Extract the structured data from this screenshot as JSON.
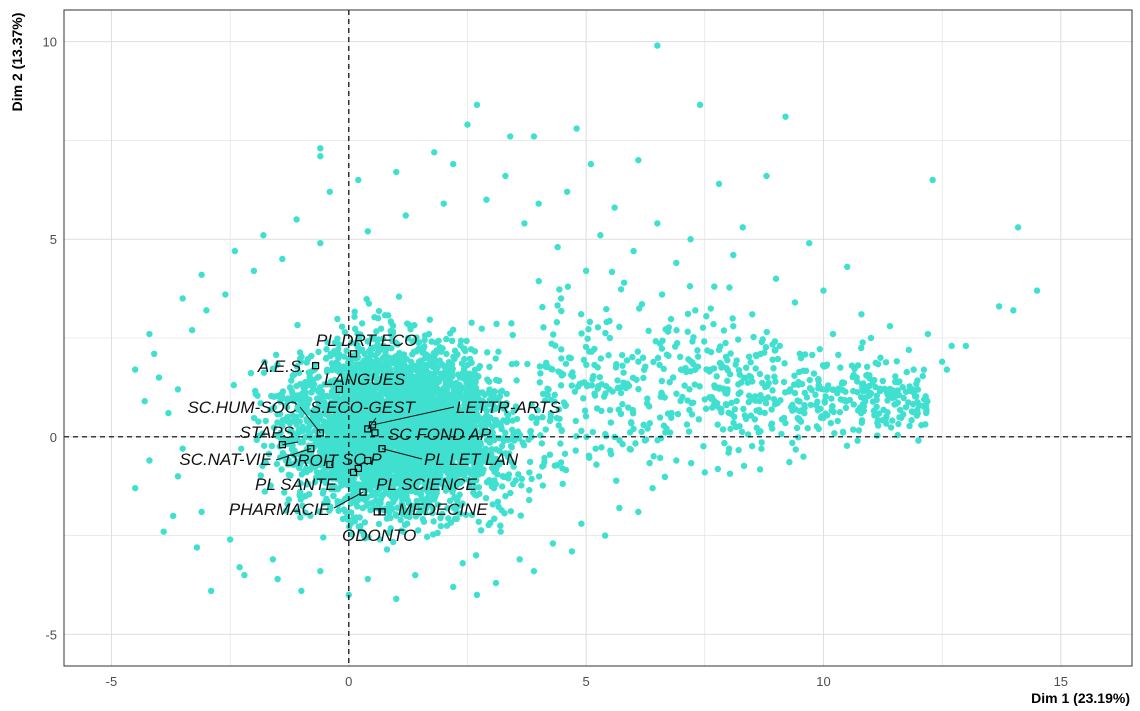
{
  "chart_data": {
    "type": "scatter",
    "title": "",
    "xlabel": "Dim 1 (23.19%)",
    "ylabel": "Dim 2 (13.37%)",
    "xlim": [
      -6,
      16.5
    ],
    "ylim": [
      -5.8,
      10.8
    ],
    "x_ticks": [
      -5,
      0,
      5,
      10,
      15
    ],
    "y_ticks": [
      -5,
      0,
      5,
      10
    ],
    "grid": true,
    "legend": "none",
    "reference_lines": {
      "x": 0,
      "y": 0,
      "style": "dashed"
    },
    "colors": {
      "points": "#40E0D0",
      "grid": "#dedede",
      "frame": "#333333",
      "reference": "#000000"
    },
    "individuals": {
      "color": "#40E0D0",
      "points": [
        [
          6.5,
          9.9
        ],
        [
          7.4,
          8.4
        ],
        [
          9.2,
          8.1
        ],
        [
          2.7,
          8.4
        ],
        [
          2.5,
          7.9
        ],
        [
          3.4,
          7.6
        ],
        [
          3.9,
          7.6
        ],
        [
          4.8,
          7.8
        ],
        [
          -0.6,
          7.3
        ],
        [
          -0.6,
          7.1
        ],
        [
          7.8,
          6.4
        ],
        [
          8.8,
          6.6
        ],
        [
          6.1,
          7.0
        ],
        [
          5.1,
          6.9
        ],
        [
          12.3,
          6.5
        ],
        [
          14.1,
          5.3
        ],
        [
          14.5,
          3.7
        ],
        [
          14.0,
          3.2
        ],
        [
          13.7,
          3.3
        ],
        [
          12.7,
          2.3
        ],
        [
          12.5,
          1.9
        ],
        [
          11.6,
          1.4
        ],
        [
          11.3,
          1.2
        ],
        [
          10.9,
          1.0
        ],
        [
          9.9,
          0.2
        ],
        [
          10.3,
          0.4
        ],
        [
          -4.5,
          1.7
        ],
        [
          -4.1,
          2.1
        ],
        [
          -4.0,
          1.5
        ],
        [
          -3.9,
          -2.4
        ],
        [
          -4.5,
          -1.3
        ],
        [
          -2.9,
          -3.9
        ],
        [
          -2.3,
          -3.3
        ],
        [
          -1.5,
          -3.6
        ],
        [
          2.7,
          -4.0
        ],
        [
          2.2,
          -3.8
        ],
        [
          -3.5,
          -0.3
        ],
        [
          -3.3,
          2.7
        ],
        [
          -3.0,
          3.2
        ],
        [
          -2.6,
          3.6
        ],
        [
          -2.0,
          4.2
        ],
        [
          -1.4,
          4.5
        ],
        [
          -0.6,
          4.9
        ],
        [
          0.4,
          5.2
        ],
        [
          1.2,
          5.6
        ],
        [
          2.0,
          5.9
        ],
        [
          2.9,
          6.0
        ],
        [
          3.7,
          5.4
        ],
        [
          4.4,
          4.8
        ],
        [
          5.0,
          4.2
        ],
        [
          5.8,
          3.9
        ],
        [
          6.6,
          3.6
        ],
        [
          7.3,
          3.2
        ],
        [
          8.1,
          2.8
        ],
        [
          8.7,
          2.4
        ],
        [
          9.5,
          2.1
        ],
        [
          10.2,
          2.6
        ],
        [
          10.8,
          3.1
        ],
        [
          11.4,
          2.8
        ],
        [
          9.0,
          4.0
        ],
        [
          8.1,
          4.6
        ],
        [
          7.2,
          5.0
        ],
        [
          6.5,
          5.4
        ],
        [
          5.6,
          5.8
        ],
        [
          4.6,
          6.2
        ],
        [
          9.7,
          4.9
        ],
        [
          10.5,
          4.3
        ],
        [
          11.8,
          2.2
        ],
        [
          9.3,
          1.2
        ],
        [
          8.5,
          1.4
        ],
        [
          7.6,
          1.0
        ],
        [
          6.8,
          0.6
        ],
        [
          6.0,
          0.2
        ],
        [
          5.2,
          -0.3
        ],
        [
          4.5,
          -0.8
        ],
        [
          3.8,
          -1.6
        ],
        [
          3.2,
          -2.4
        ],
        [
          2.4,
          -3.2
        ],
        [
          1.4,
          -3.5
        ],
        [
          0.4,
          -3.6
        ],
        [
          -0.6,
          -3.4
        ],
        [
          -1.6,
          -3.1
        ],
        [
          -2.5,
          -2.6
        ],
        [
          -3.1,
          -1.9
        ],
        [
          -3.6,
          -1.0
        ],
        [
          -3.8,
          0.6
        ],
        [
          -3.6,
          1.2
        ],
        [
          5.5,
          2.5
        ],
        [
          6.2,
          2.0
        ],
        [
          7.0,
          1.7
        ],
        [
          7.8,
          2.2
        ],
        [
          8.5,
          3.1
        ],
        [
          9.8,
          1.6
        ],
        [
          10.6,
          1.8
        ],
        [
          11.2,
          2.0
        ],
        [
          12.2,
          2.6
        ],
        [
          13.0,
          2.3
        ],
        [
          6.9,
          -0.6
        ],
        [
          7.5,
          -0.9
        ],
        [
          6.4,
          -1.3
        ],
        [
          5.7,
          -1.8
        ],
        [
          4.9,
          -2.2
        ],
        [
          4.3,
          -2.7
        ],
        [
          3.6,
          -3.1
        ],
        [
          1.8,
          7.2
        ],
        [
          1.0,
          6.7
        ],
        [
          0.2,
          6.5
        ],
        [
          -0.4,
          6.2
        ],
        [
          -1.1,
          5.5
        ],
        [
          -1.8,
          5.1
        ],
        [
          -2.4,
          4.7
        ],
        [
          -3.1,
          4.1
        ],
        [
          -3.5,
          3.5
        ],
        [
          -4.2,
          2.6
        ],
        [
          -4.3,
          0.9
        ],
        [
          -4.2,
          -0.6
        ],
        [
          -3.7,
          -2.0
        ],
        [
          -3.2,
          -2.8
        ],
        [
          -2.2,
          -3.5
        ],
        [
          -1.0,
          -3.9
        ],
        [
          0.0,
          -4.0
        ],
        [
          1.0,
          -4.1
        ],
        [
          3.1,
          -3.7
        ],
        [
          3.9,
          -3.4
        ],
        [
          4.7,
          -2.9
        ],
        [
          5.4,
          -2.5
        ],
        [
          6.1,
          -1.9
        ],
        [
          8.0,
          -0.4
        ],
        [
          8.9,
          0.3
        ],
        [
          9.6,
          0.8
        ],
        [
          10.1,
          1.3
        ],
        [
          10.7,
          1.5
        ],
        [
          11.9,
          1.7
        ],
        [
          12.6,
          1.7
        ],
        [
          11.0,
          2.5
        ],
        [
          7.7,
          3.8
        ],
        [
          6.9,
          4.4
        ],
        [
          6.0,
          4.7
        ],
        [
          5.3,
          5.1
        ],
        [
          4.0,
          5.9
        ],
        [
          3.3,
          6.6
        ],
        [
          2.2,
          6.9
        ],
        [
          8.3,
          5.3
        ],
        [
          9.4,
          3.4
        ],
        [
          10.0,
          3.7
        ]
      ]
    },
    "categories": [
      {
        "label": "PL DRT ECO",
        "x": 0.1,
        "y": 2.1
      },
      {
        "label": "A.E.S.",
        "x": -0.7,
        "y": 1.8
      },
      {
        "label": "LANGUES",
        "x": -0.2,
        "y": 1.2
      },
      {
        "label": "SC.HUM-SOC",
        "x": -0.6,
        "y": 0.1
      },
      {
        "label": "S.ECO-GEST",
        "x": 0.4,
        "y": 0.2
      },
      {
        "label": "LETTR-ARTS",
        "x": 0.5,
        "y": 0.3
      },
      {
        "label": "STAPS",
        "x": -1.4,
        "y": -0.2
      },
      {
        "label": "SC FOND AP",
        "x": 0.55,
        "y": 0.1
      },
      {
        "label": "SC.NAT-VIE",
        "x": -0.8,
        "y": -0.3
      },
      {
        "label": "DROIT",
        "x": -0.4,
        "y": -0.7
      },
      {
        "label": "SC.P",
        "x": 0.2,
        "y": -0.8
      },
      {
        "label": "PL LET LAN",
        "x": 0.7,
        "y": -0.3
      },
      {
        "label": "PL SANTE",
        "x": 0.1,
        "y": -0.9
      },
      {
        "label": "PL SCIENCE",
        "x": 0.4,
        "y": -0.6
      },
      {
        "label": "PHARMACIE",
        "x": 0.3,
        "y": -1.4
      },
      {
        "label": "MEDECINE",
        "x": 0.7,
        "y": -1.9
      },
      {
        "label": "ODONTO",
        "x": 0.6,
        "y": -1.9
      }
    ]
  }
}
